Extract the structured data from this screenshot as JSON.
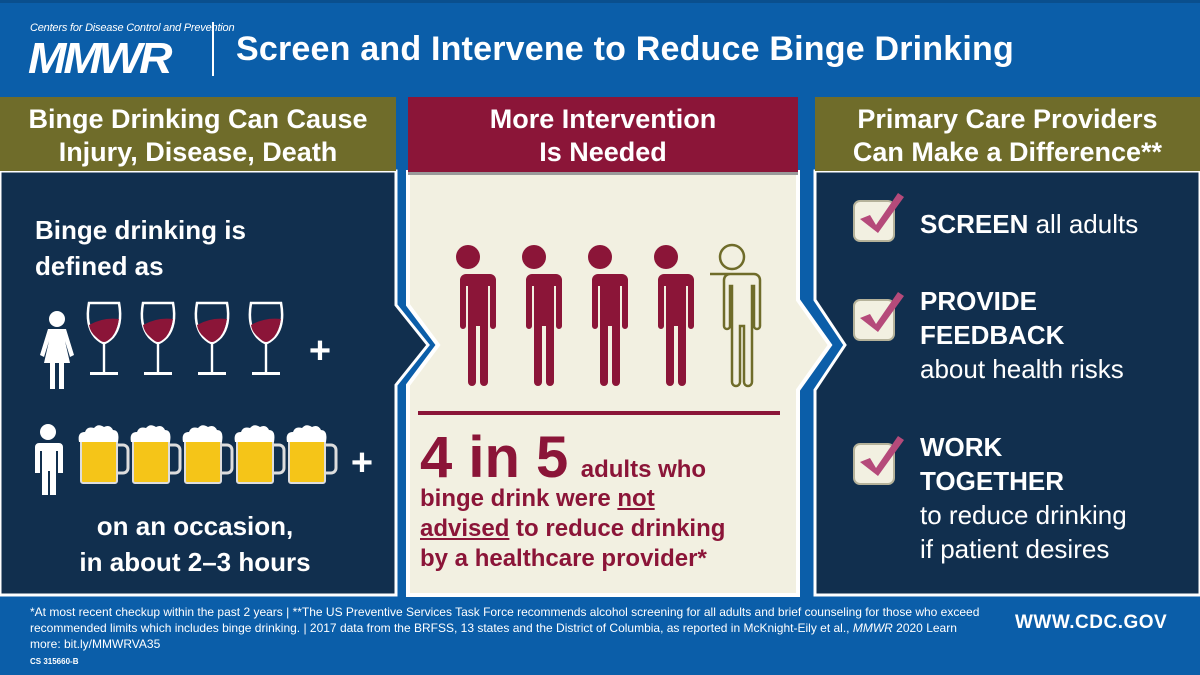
{
  "header": {
    "logo_org": "Centers for Disease Control and Prevention",
    "logo": "MMWR",
    "title": "Screen and Intervene to Reduce Binge Drinking"
  },
  "left": {
    "heading_line1": "Binge Drinking Can Cause",
    "heading_line2": "Injury, Disease, Death",
    "intro_line1": "Binge drinking is",
    "intro_line2": "defined as",
    "women_drinks": 4,
    "men_drinks": 5,
    "plus": "+",
    "outro_line1": "on an occasion,",
    "outro_line2": "in about 2–3 hours"
  },
  "middle": {
    "heading_line1": "More Intervention",
    "heading_line2": "Is Needed",
    "people_total": 5,
    "people_highlighted": 4,
    "stat": "4 in 5",
    "stat_tail": "adults who",
    "line2_pre": "binge drink were ",
    "line2_ul": "not",
    "line3_ul": "advised",
    "line3_post": " to reduce drinking",
    "line4": "by a healthcare provider*"
  },
  "right": {
    "heading_line1": "Primary Care Providers",
    "heading_line2": "Can Make a Difference**",
    "items": [
      {
        "bold": "SCREEN",
        "rest": " all adults"
      },
      {
        "bold1": "PROVIDE",
        "bold2": "FEEDBACK",
        "rest": "about health risks"
      },
      {
        "bold1": "WORK",
        "bold2": "TOGETHER",
        "rest1": "to reduce drinking",
        "rest2": "if patient desires"
      }
    ]
  },
  "footer": {
    "note1": "*At most recent checkup within the past 2 years | **The US Preventive Services Task Force recommends alcohol screening for all adults and brief counseling for those who exceed recommended limits which includes binge drinking. | 2017 data from the BRFSS, 13 states and the District of Columbia, as reported in McKnight-Eily et al., ",
    "note_italic": "MMWR",
    "note2": " 2020 Learn more: bit.ly/MMWRVA35",
    "website": "WWW.CDC.GOV",
    "code": "CS 315660-B"
  },
  "colors": {
    "blue": "#0b5ea9",
    "navy": "#112f4e",
    "olive": "#6f6c2a",
    "maroon": "#8b1538",
    "cream": "#f2f0e1",
    "beer": "#f5c518"
  }
}
